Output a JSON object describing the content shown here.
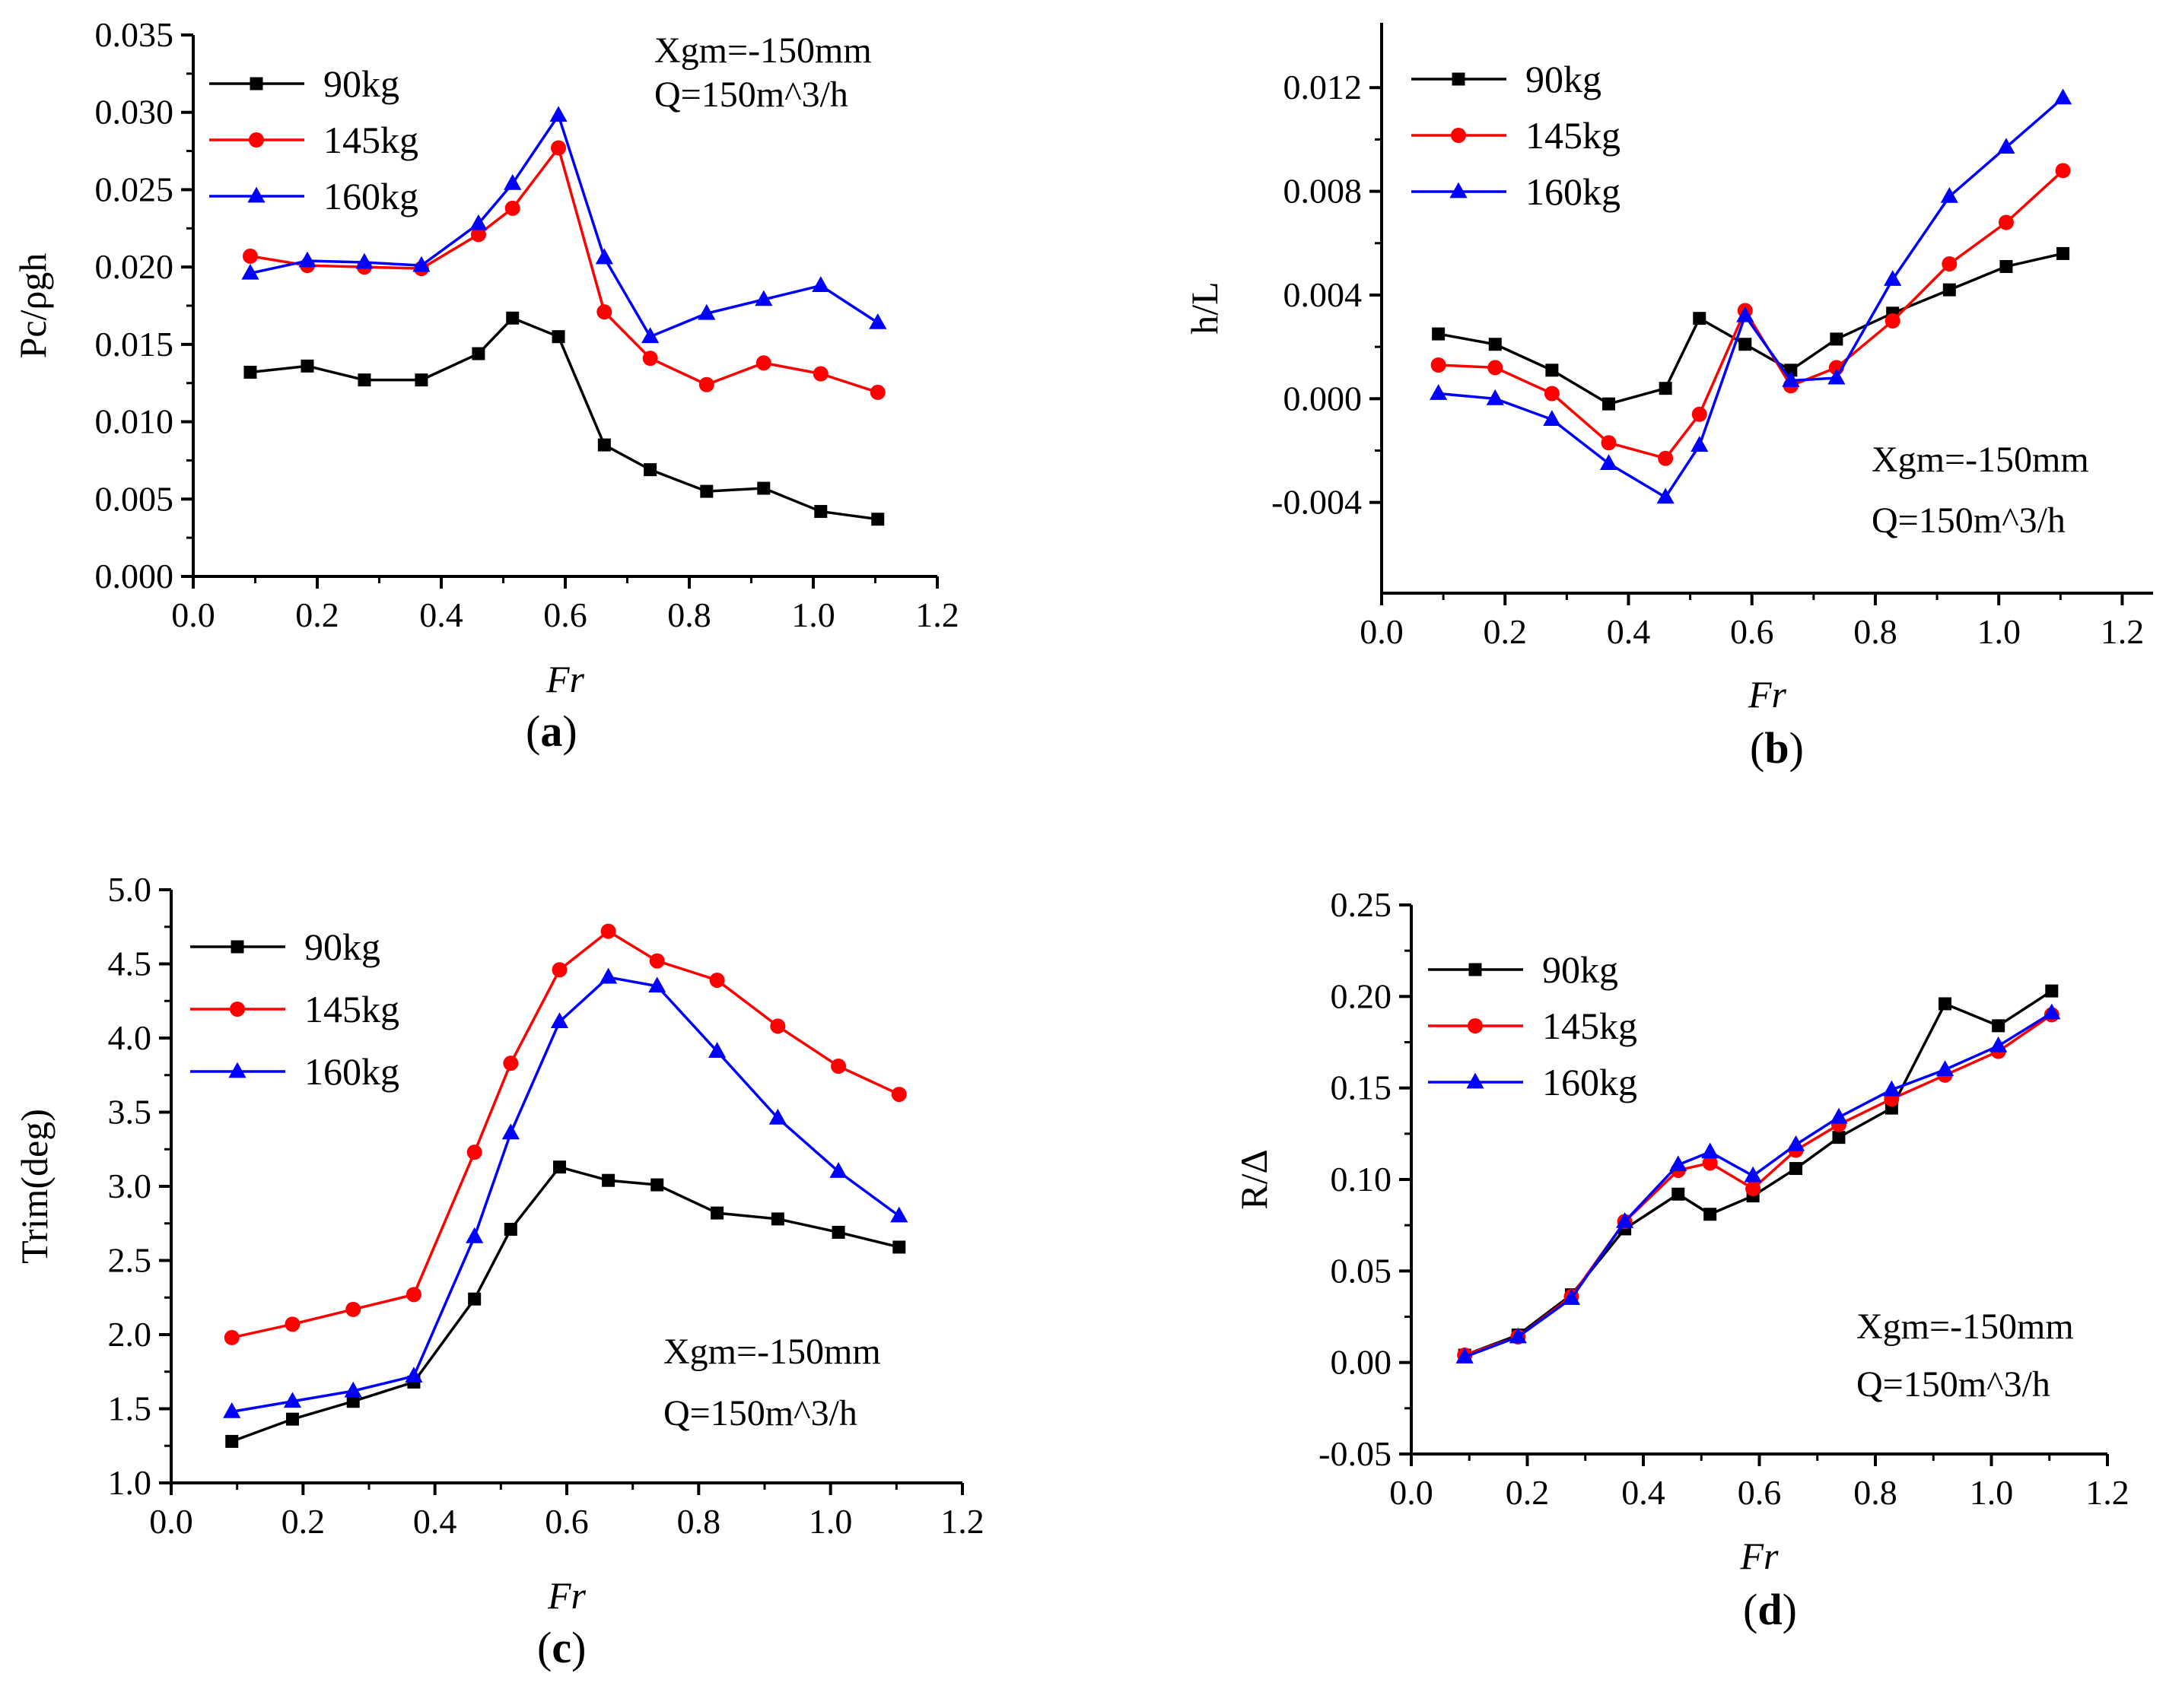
{
  "figure": {
    "panels": [
      {
        "id": "a",
        "label": "a",
        "label_open": "(",
        "label_close": ")"
      },
      {
        "id": "b",
        "label": "b",
        "label_open": "(",
        "label_close": ")"
      },
      {
        "id": "c",
        "label": "c",
        "label_open": "(",
        "label_close": ")"
      },
      {
        "id": "d",
        "label": "d",
        "label_open": "(",
        "label_close": ")"
      }
    ]
  },
  "colors": {
    "90kg": "#000000",
    "145kg": "#ff0000",
    "160kg": "#0000ff"
  },
  "chart_data": [
    {
      "id": "a",
      "type": "line",
      "title": "",
      "xlabel": "Fr",
      "ylabel": "Pc/ρgh",
      "xlim": [
        0.0,
        1.2
      ],
      "ylim": [
        0.0,
        0.035
      ],
      "xticks": [
        "0.0",
        "0.2",
        "0.4",
        "0.6",
        "0.8",
        "1.0",
        "1.2"
      ],
      "yticks": [
        "0.000",
        "0.005",
        "0.010",
        "0.015",
        "0.020",
        "0.025",
        "0.030",
        "0.035"
      ],
      "legend_position": "top-left",
      "annotations": [
        "Xgm=-150mm",
        "Q=150m^3/h"
      ],
      "x": [
        0.092,
        0.184,
        0.276,
        0.368,
        0.46,
        0.515,
        0.589,
        0.663,
        0.737,
        0.828,
        0.92,
        1.012,
        1.104
      ],
      "series": [
        {
          "name": "90kg",
          "marker": "square",
          "values": [
            0.0132,
            0.0136,
            0.0127,
            0.0127,
            0.0144,
            0.0167,
            0.0155,
            0.0085,
            0.0069,
            0.0055,
            0.0057,
            0.0042,
            0.0037
          ]
        },
        {
          "name": "145kg",
          "marker": "circle",
          "values": [
            0.0207,
            0.0201,
            0.02,
            0.0199,
            0.0221,
            0.0238,
            0.0277,
            0.0171,
            0.0141,
            0.0124,
            0.0138,
            0.0131,
            0.0119
          ]
        },
        {
          "name": "160kg",
          "marker": "triangle",
          "values": [
            0.0196,
            0.0204,
            0.0203,
            0.0201,
            0.0228,
            0.0254,
            0.0298,
            0.0206,
            0.0155,
            0.017,
            0.0179,
            0.0188,
            0.0164
          ]
        }
      ]
    },
    {
      "id": "b",
      "type": "line",
      "title": "",
      "xlabel": "Fr",
      "ylabel": "h/L",
      "xlim": [
        0.0,
        1.25
      ],
      "ylim": [
        -0.0075,
        0.0145
      ],
      "xticks": [
        "0.0",
        "0.2",
        "0.4",
        "0.6",
        "0.8",
        "1.0",
        "1.2"
      ],
      "yticks": [
        "-0.004",
        "0.000",
        "0.004",
        "0.008",
        "0.012"
      ],
      "legend_position": "top-left",
      "annotations": [
        "Xgm=-150mm",
        "Q=150m^3/h"
      ],
      "x": [
        0.092,
        0.184,
        0.276,
        0.368,
        0.46,
        0.515,
        0.589,
        0.663,
        0.737,
        0.828,
        0.92,
        1.012,
        1.104
      ],
      "series": [
        {
          "name": "90kg",
          "marker": "square",
          "values": [
            0.0025,
            0.0021,
            0.0011,
            -0.0002,
            0.0004,
            0.0031,
            0.0021,
            0.0011,
            0.0023,
            0.0033,
            0.0042,
            0.0051,
            0.0056
          ]
        },
        {
          "name": "145kg",
          "marker": "circle",
          "values": [
            0.0013,
            0.0012,
            0.0002,
            -0.0017,
            -0.0023,
            -0.0006,
            0.0034,
            0.0005,
            0.0012,
            0.003,
            0.0052,
            0.0068,
            0.0088
          ]
        },
        {
          "name": "160kg",
          "marker": "triangle",
          "values": [
            0.0002,
            0.0,
            -0.0008,
            -0.0025,
            -0.0038,
            -0.0018,
            0.0032,
            0.0007,
            0.0008,
            0.0046,
            0.0078,
            0.0097,
            0.0116
          ]
        }
      ]
    },
    {
      "id": "c",
      "type": "line",
      "title": "",
      "xlabel": "Fr",
      "ylabel": "Trim(deg)",
      "xlim": [
        0.0,
        1.2
      ],
      "ylim": [
        1.0,
        5.0
      ],
      "xticks": [
        "0.0",
        "0.2",
        "0.4",
        "0.6",
        "0.8",
        "1.0",
        "1.2"
      ],
      "yticks": [
        "1.0",
        "1.5",
        "2.0",
        "2.5",
        "3.0",
        "3.5",
        "4.0",
        "4.5",
        "5.0"
      ],
      "legend_position": "top-left",
      "annotations": [
        "Xgm=-150mm",
        "Q=150m^3/h"
      ],
      "x": [
        0.092,
        0.184,
        0.276,
        0.368,
        0.46,
        0.515,
        0.589,
        0.663,
        0.737,
        0.828,
        0.92,
        1.012,
        1.104
      ],
      "series": [
        {
          "name": "90kg",
          "marker": "square",
          "values": [
            1.28,
            1.43,
            1.55,
            1.68,
            2.24,
            2.71,
            3.13,
            3.04,
            3.01,
            2.82,
            2.78,
            2.69,
            2.59
          ]
        },
        {
          "name": "145kg",
          "marker": "circle",
          "values": [
            1.98,
            2.07,
            2.17,
            2.27,
            3.23,
            3.83,
            4.46,
            4.72,
            4.52,
            4.39,
            4.08,
            3.81,
            3.62
          ]
        },
        {
          "name": "160kg",
          "marker": "triangle",
          "values": [
            1.48,
            1.55,
            1.62,
            1.72,
            2.66,
            3.36,
            4.11,
            4.41,
            4.35,
            3.91,
            3.46,
            3.1,
            2.8
          ]
        }
      ]
    },
    {
      "id": "d",
      "type": "line",
      "title": "",
      "xlabel": "Fr",
      "ylabel": "R/Δ",
      "xlim": [
        0.0,
        1.2
      ],
      "ylim": [
        -0.05,
        0.25
      ],
      "xticks": [
        "0.0",
        "0.2",
        "0.4",
        "0.6",
        "0.8",
        "1.0",
        "1.2"
      ],
      "yticks": [
        "-0.05",
        "0.00",
        "0.05",
        "0.10",
        "0.15",
        "0.20",
        "0.25"
      ],
      "legend_position": "top-left",
      "annotations": [
        "Xgm=-150mm",
        "Q=150m^3/h"
      ],
      "x": [
        0.092,
        0.184,
        0.276,
        0.368,
        0.46,
        0.515,
        0.589,
        0.663,
        0.737,
        0.828,
        0.92,
        1.012,
        1.104
      ],
      "series": [
        {
          "name": "90kg",
          "marker": "square",
          "values": [
            0.004,
            0.015,
            0.037,
            0.073,
            0.092,
            0.081,
            0.091,
            0.106,
            0.123,
            0.139,
            0.196,
            0.184,
            0.203
          ]
        },
        {
          "name": "145kg",
          "marker": "circle",
          "values": [
            0.004,
            0.014,
            0.036,
            0.077,
            0.105,
            0.109,
            0.095,
            0.116,
            0.13,
            0.144,
            0.157,
            0.17,
            0.19
          ]
        },
        {
          "name": "160kg",
          "marker": "triangle",
          "values": [
            0.003,
            0.014,
            0.035,
            0.077,
            0.108,
            0.115,
            0.102,
            0.119,
            0.134,
            0.149,
            0.16,
            0.173,
            0.191
          ]
        }
      ]
    }
  ]
}
